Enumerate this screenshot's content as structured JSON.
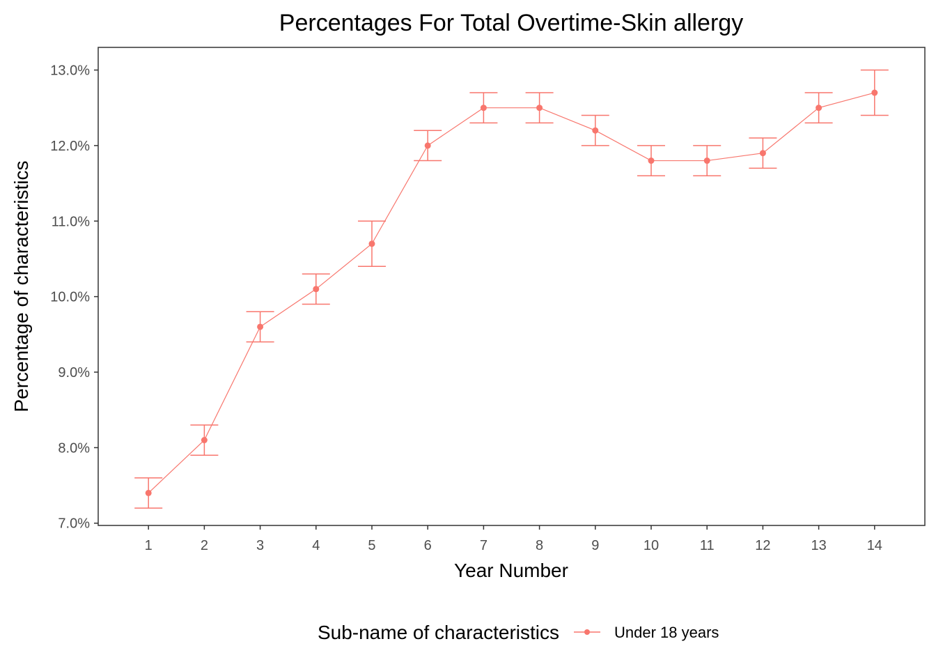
{
  "chart_data": {
    "type": "line",
    "title": "Percentages For Total Overtime-Skin allergy",
    "xlabel": "Year Number",
    "ylabel": "Percentage of characteristics",
    "x": [
      1,
      2,
      3,
      4,
      5,
      6,
      7,
      8,
      9,
      10,
      11,
      12,
      13,
      14
    ],
    "xlim": [
      0.1,
      14.9
    ],
    "ylim": [
      6.97,
      13.3
    ],
    "yticks": [
      7.0,
      8.0,
      9.0,
      10.0,
      11.0,
      12.0,
      13.0
    ],
    "ytick_labels": [
      "7.0%",
      "8.0%",
      "9.0%",
      "10.0%",
      "11.0%",
      "12.0%",
      "13.0%"
    ],
    "grid": false,
    "legend": {
      "position": "bottom",
      "title": "Sub-name of characteristics"
    },
    "series": [
      {
        "name": "Under 18 years",
        "color": "#F8766D",
        "values": [
          7.4,
          8.1,
          9.6,
          10.1,
          10.7,
          12.0,
          12.5,
          12.5,
          12.2,
          11.8,
          11.8,
          11.9,
          12.5,
          12.7
        ],
        "error_low": [
          7.2,
          7.9,
          9.4,
          9.9,
          10.4,
          11.8,
          12.3,
          12.3,
          12.0,
          11.6,
          11.6,
          11.7,
          12.3,
          12.4
        ],
        "error_high": [
          7.6,
          8.3,
          9.8,
          10.3,
          11.0,
          12.2,
          12.7,
          12.7,
          12.4,
          12.0,
          12.0,
          12.1,
          12.7,
          13.0
        ]
      }
    ]
  }
}
